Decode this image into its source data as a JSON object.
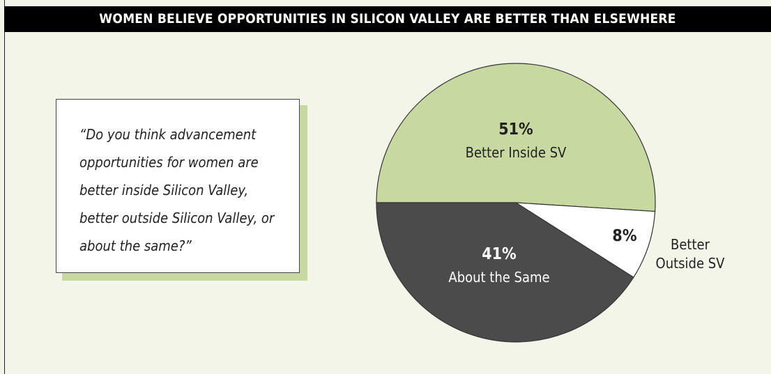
{
  "chart_data": {
    "type": "pie",
    "title": "WOMEN BELIEVE OPPORTUNITIES IN SILICON VALLEY ARE BETTER THAN ELSEWHERE",
    "annotation": "“Do you think advancement opportunities for women are better inside Silicon Valley, better outside Silicon Valley, or about the same?”",
    "categories": [
      "Better Inside SV",
      "Better Outside SV",
      "About the Same"
    ],
    "values": [
      51,
      8,
      41
    ],
    "value_labels": [
      "51%",
      "8%",
      "41%"
    ],
    "colors": [
      "#c7d8a0",
      "#ffffff",
      "#4b4b4b"
    ]
  }
}
